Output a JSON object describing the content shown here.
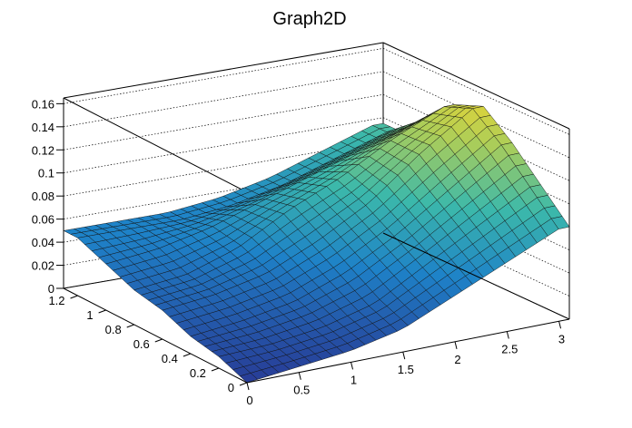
{
  "chart_data": {
    "type": "surface",
    "title": "Graph2D",
    "xlabel": "",
    "ylabel": "",
    "zlabel": "",
    "xlim": [
      0,
      3.1
    ],
    "ylim": [
      0,
      1.3
    ],
    "zlim": [
      0,
      0.165
    ],
    "x_ticks": [
      "0",
      "0.5",
      "1",
      "1.5",
      "2",
      "2.5",
      "3"
    ],
    "y_ticks": [
      "0",
      "0.2",
      "0.4",
      "0.6",
      "0.8",
      "1",
      "1.2"
    ],
    "z_ticks": [
      "0",
      "0.02",
      "0.04",
      "0.06",
      "0.08",
      "0.1",
      "0.12",
      "0.14",
      "0.16"
    ],
    "colormap": "viridis-like (blue-green-yellow)",
    "grid": true,
    "surface_samples": {
      "x": [
        0,
        0.5,
        1,
        1.5,
        2,
        2.5,
        3
      ],
      "y": [
        0,
        0.2,
        0.4,
        0.6,
        0.8,
        1,
        1.2
      ],
      "z": [
        [
          0.0,
          0.005,
          0.01,
          0.02,
          0.04,
          0.06,
          0.08
        ],
        [
          0.01,
          0.012,
          0.018,
          0.03,
          0.055,
          0.08,
          0.105
        ],
        [
          0.015,
          0.02,
          0.028,
          0.045,
          0.07,
          0.1,
          0.13
        ],
        [
          0.025,
          0.03,
          0.04,
          0.06,
          0.085,
          0.12,
          0.15
        ],
        [
          0.03,
          0.035,
          0.05,
          0.075,
          0.095,
          0.12,
          0.14
        ],
        [
          0.04,
          0.045,
          0.055,
          0.07,
          0.085,
          0.1,
          0.115
        ],
        [
          0.05,
          0.05,
          0.05,
          0.055,
          0.065,
          0.08,
          0.095
        ]
      ]
    }
  }
}
